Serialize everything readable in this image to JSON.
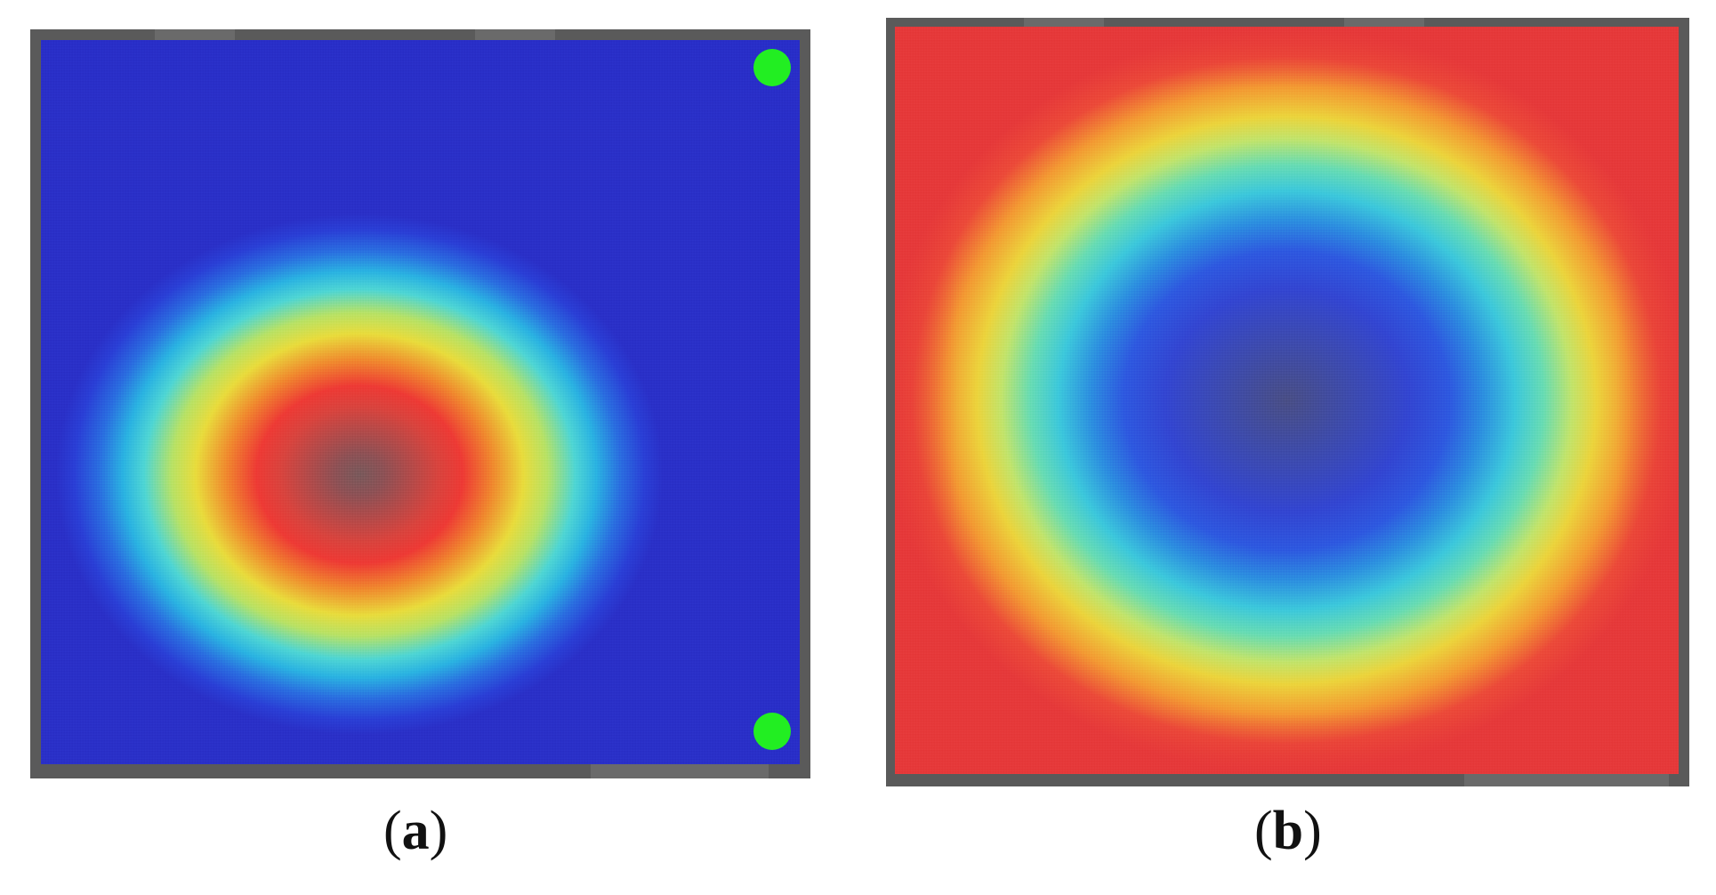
{
  "figure": {
    "panels": [
      {
        "id": "a",
        "caption_open": "(",
        "caption_letter": "a",
        "caption_close": ")",
        "markers": [
          {
            "name": "green-marker-top-right",
            "color": "#22ee22"
          },
          {
            "name": "green-marker-bottom-right",
            "color": "#22ee22"
          }
        ]
      },
      {
        "id": "b",
        "caption_open": "(",
        "caption_letter": "b",
        "caption_close": ")"
      }
    ],
    "colors": {
      "frame": "#5a5a5a",
      "hot": "#ee3a35",
      "cold": "#2a30c8",
      "marker": "#22ee22"
    }
  }
}
